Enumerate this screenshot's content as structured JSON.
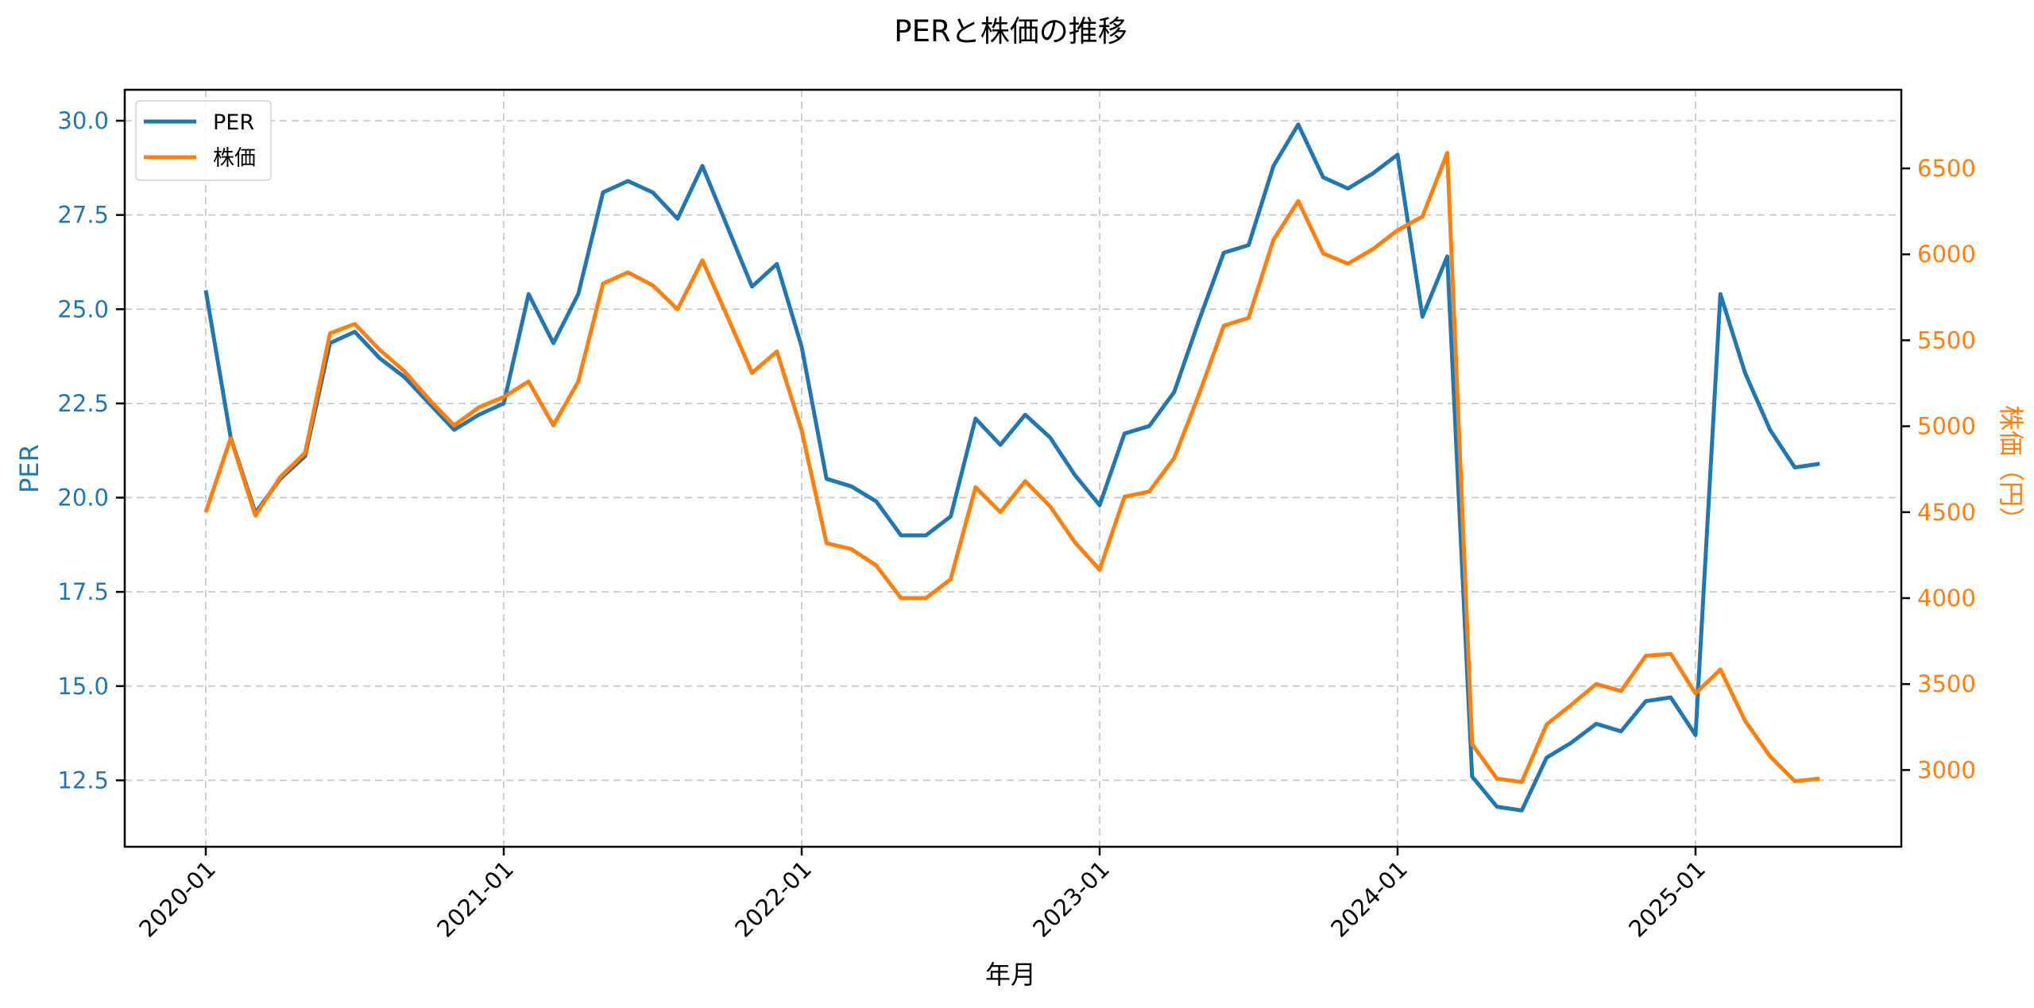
{
  "chart_data": {
    "type": "line",
    "title": "PERと株価の推移",
    "xlabel": "年月",
    "ylabel": "PER",
    "ylabel_right": "株価（円）",
    "x_ticks": [
      "2020-01",
      "2021-01",
      "2022-01",
      "2023-01",
      "2024-01",
      "2025-01"
    ],
    "y_ticks_left": [
      "12.5",
      "15.0",
      "17.5",
      "20.0",
      "22.5",
      "25.0",
      "27.5",
      "30.0"
    ],
    "y_ticks_right": [
      "3000",
      "3500",
      "4000",
      "4500",
      "5000",
      "5500",
      "6000",
      "6500"
    ],
    "ylim_left": [
      10.9,
      30.8
    ],
    "ylim_right": [
      2580,
      6955
    ],
    "grid": true,
    "legend_position": "upper left",
    "x": [
      "2020-01",
      "2020-02",
      "2020-03",
      "2020-04",
      "2020-05",
      "2020-06",
      "2020-07",
      "2020-08",
      "2020-09",
      "2020-10",
      "2020-11",
      "2020-12",
      "2021-01",
      "2021-02",
      "2021-03",
      "2021-04",
      "2021-05",
      "2021-06",
      "2021-07",
      "2021-08",
      "2021-09",
      "2021-10",
      "2021-11",
      "2021-12",
      "2022-01",
      "2022-02",
      "2022-03",
      "2022-04",
      "2022-05",
      "2022-06",
      "2022-07",
      "2022-08",
      "2022-09",
      "2022-10",
      "2022-11",
      "2022-12",
      "2023-01",
      "2023-02",
      "2023-03",
      "2023-04",
      "2023-05",
      "2023-06",
      "2023-07",
      "2023-08",
      "2023-09",
      "2023-10",
      "2023-11",
      "2023-12",
      "2024-01",
      "2024-02",
      "2024-03",
      "2024-04",
      "2024-05",
      "2024-06",
      "2024-07",
      "2024-08",
      "2024-09",
      "2024-10",
      "2024-11",
      "2024-12",
      "2025-01",
      "2025-02",
      "2025-03",
      "2025-04",
      "2025-05",
      "2025-06"
    ],
    "series": [
      {
        "name": "PER",
        "axis": "left",
        "color": "#1f77b4",
        "values": [
          25.5,
          21.6,
          19.6,
          20.5,
          21.1,
          24.1,
          24.4,
          23.7,
          23.2,
          22.5,
          21.8,
          22.2,
          22.5,
          25.4,
          24.1,
          25.4,
          28.1,
          28.4,
          28.1,
          27.4,
          28.8,
          27.2,
          25.6,
          26.2,
          24.0,
          20.5,
          20.3,
          19.9,
          19.0,
          19.0,
          19.5,
          22.1,
          21.4,
          22.2,
          21.6,
          20.6,
          19.8,
          21.7,
          21.9,
          22.8,
          24.7,
          26.5,
          26.7,
          28.8,
          29.9,
          28.5,
          28.2,
          28.6,
          29.1,
          24.8,
          26.4,
          12.6,
          11.8,
          11.7,
          13.1,
          13.5,
          14.0,
          13.8,
          14.6,
          14.7,
          13.7,
          25.4,
          23.3,
          21.8,
          20.8,
          20.9
        ]
      },
      {
        "name": "株価",
        "axis": "right",
        "color": "#ff7f0e",
        "values": [
          4500,
          4930,
          4480,
          4705,
          4845,
          5540,
          5595,
          5445,
          5320,
          5155,
          5005,
          5110,
          5170,
          5260,
          5005,
          5260,
          5830,
          5895,
          5820,
          5680,
          5965,
          5640,
          5310,
          5435,
          4975,
          4320,
          4285,
          4190,
          4000,
          4000,
          4110,
          4645,
          4500,
          4680,
          4535,
          4325,
          4165,
          4590,
          4620,
          4815,
          5185,
          5585,
          5630,
          6085,
          6310,
          6005,
          5945,
          6030,
          6140,
          6220,
          6590,
          3150,
          2950,
          2930,
          3265,
          3380,
          3500,
          3460,
          3665,
          3675,
          3445,
          3585,
          3285,
          3080,
          2935,
          2950
        ]
      }
    ]
  },
  "legend": {
    "items": [
      {
        "label": "PER",
        "color": "#1f77b4"
      },
      {
        "label": "株価",
        "color": "#ff7f0e"
      }
    ]
  }
}
